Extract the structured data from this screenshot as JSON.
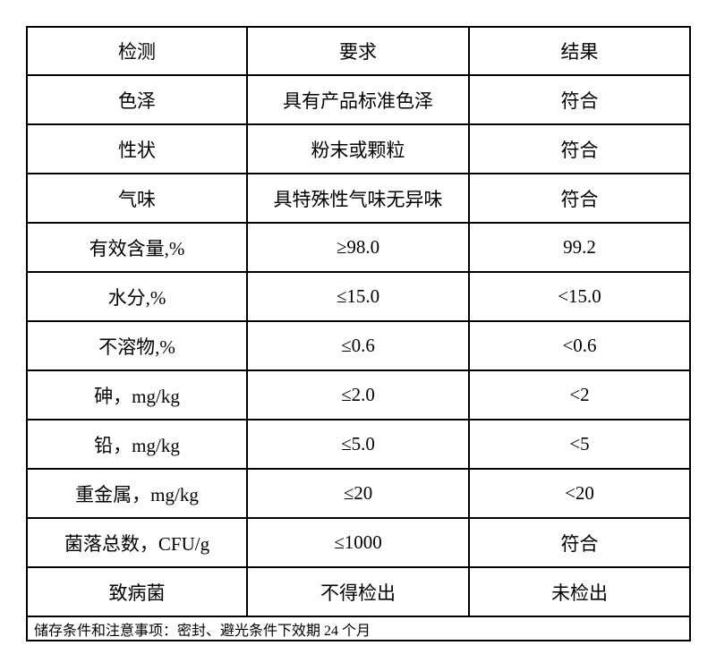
{
  "table": {
    "headers": [
      "检测",
      "要求",
      "结果"
    ],
    "rows": [
      {
        "item": "色泽",
        "requirement": "具有产品标准色泽",
        "result": "符合"
      },
      {
        "item": "性状",
        "requirement": "粉末或颗粒",
        "result": "符合"
      },
      {
        "item": "气味",
        "requirement": "具特殊性气味无异味",
        "result": "符合"
      },
      {
        "item": "有效含量,%",
        "requirement": "≥98.0",
        "result": "99.2"
      },
      {
        "item": "水分,%",
        "requirement": "≤15.0",
        "result": "<15.0"
      },
      {
        "item": "不溶物,%",
        "requirement": "≤0.6",
        "result": "<0.6"
      },
      {
        "item": "砷，mg/kg",
        "requirement": "≤2.0",
        "result": "<2"
      },
      {
        "item": "铅，mg/kg",
        "requirement": "≤5.0",
        "result": "<5"
      },
      {
        "item": "重金属，mg/kg",
        "requirement": "≤20",
        "result": "<20"
      },
      {
        "item": "菌落总数，CFU/g",
        "requirement": "≤1000",
        "result": "符合"
      },
      {
        "item": "致病菌",
        "requirement": "不得检出",
        "result": "未检出"
      }
    ],
    "footer": "储存条件和注意事项：密封、避光条件下效期 24 个月"
  },
  "colors": {
    "border": "#000000",
    "text": "#000000",
    "background": "#ffffff"
  }
}
